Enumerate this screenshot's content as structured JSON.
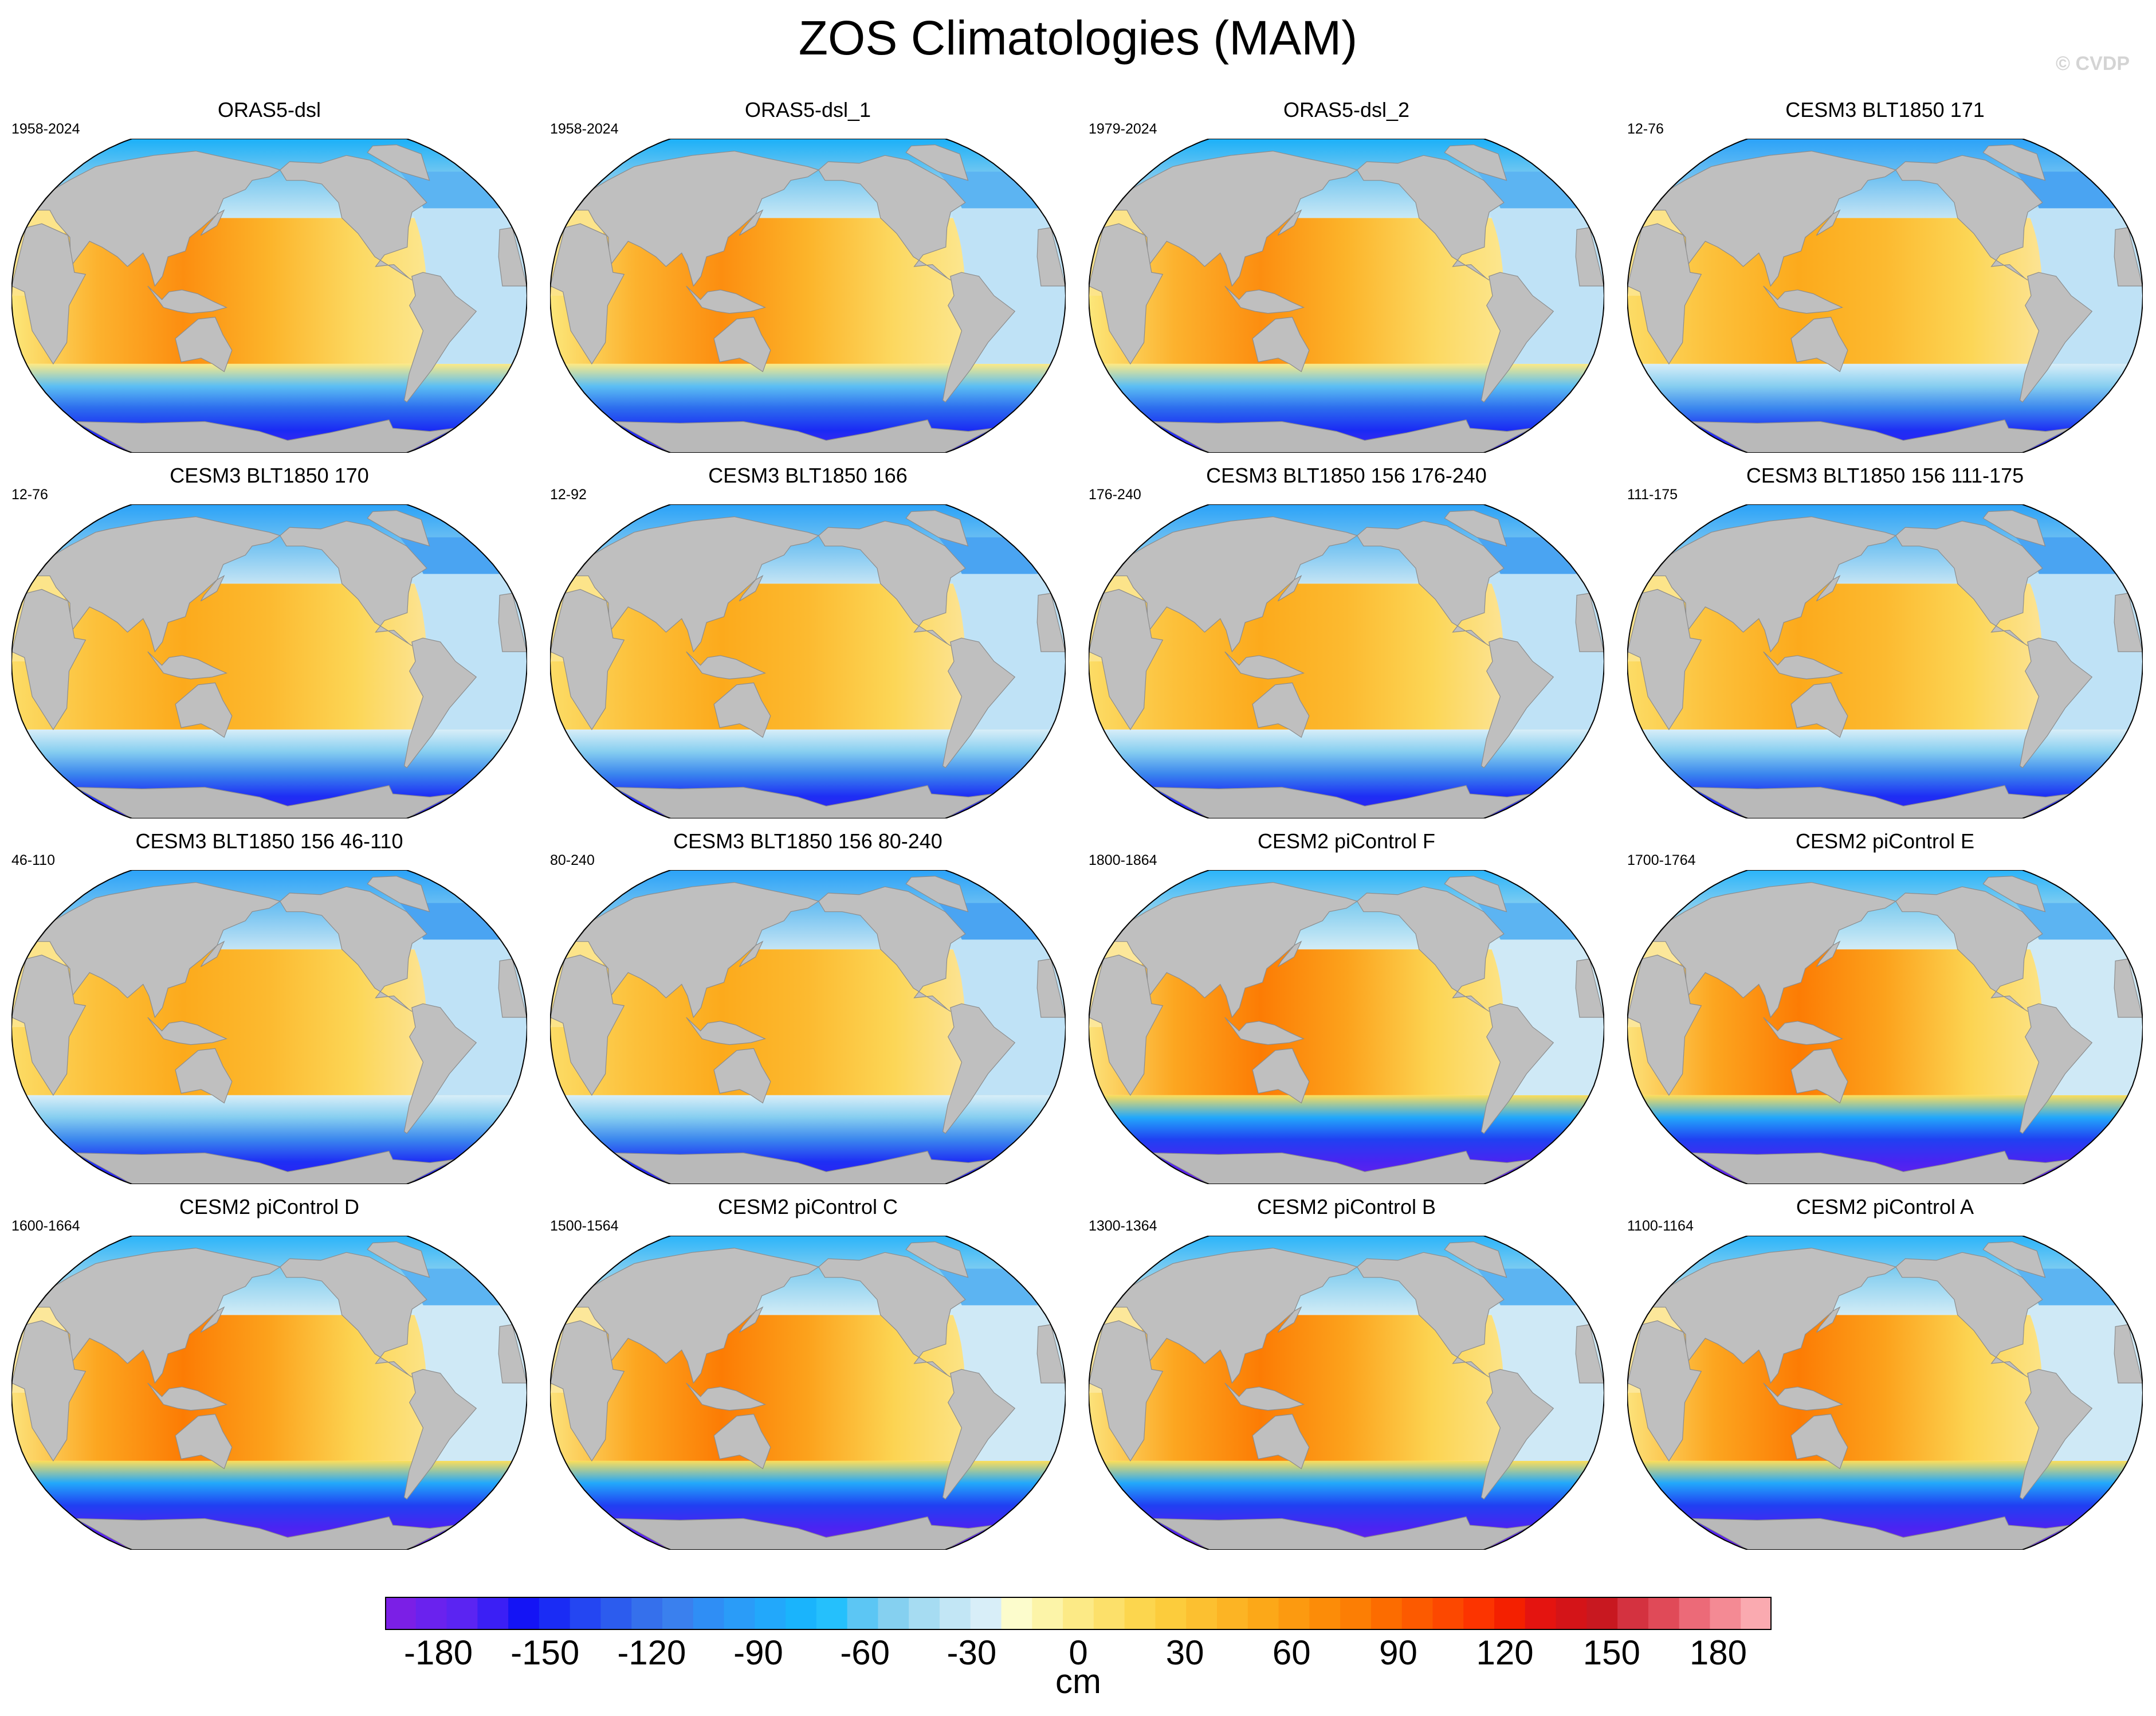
{
  "figure": {
    "title": "ZOS Climatologies (MAM)",
    "watermark": "© CVDP"
  },
  "colorbar": {
    "unit": "cm",
    "min": -195,
    "max": 195,
    "step": 7.5,
    "tick_labels": [
      "-180",
      "-150",
      "-120",
      "-90",
      "-60",
      "-30",
      "0",
      "30",
      "60",
      "90",
      "120",
      "150",
      "180"
    ],
    "tick_values": [
      -180,
      -150,
      -120,
      -90,
      -60,
      -30,
      0,
      30,
      60,
      90,
      120,
      150,
      180
    ],
    "colors": [
      "#7b1fe6",
      "#6a22ee",
      "#5b24f2",
      "#3b1ff5",
      "#1414f5",
      "#1a2cf5",
      "#2446f2",
      "#2c5cee",
      "#3570ec",
      "#3a80ee",
      "#2f8ef5",
      "#2a9cf8",
      "#22a8fb",
      "#1ab4fc",
      "#25c0fc",
      "#5cc6f4",
      "#85d0f0",
      "#a6dcf2",
      "#c2e6f5",
      "#d8eef8",
      "#fcfccc",
      "#fcf4a8",
      "#fcea86",
      "#fce06a",
      "#fcd64e",
      "#fccc3c",
      "#fcc030",
      "#fcb424",
      "#fca818",
      "#fc9a10",
      "#fc8c08",
      "#fc7e04",
      "#fc6c00",
      "#fc5a00",
      "#fc4800",
      "#fc3400",
      "#f42000",
      "#e41410",
      "#d41418",
      "#c81820",
      "#d43240",
      "#e04a58",
      "#ec6a78",
      "#f48a94",
      "#faaab0"
    ]
  },
  "chart_data": {
    "type": "heatmap",
    "title": "ZOS Climatologies (MAM)",
    "layout": "4x4 grid of Robinson-projection global maps, Pacific-centred",
    "colorbar_label": "cm",
    "zlim": [
      -195,
      195
    ],
    "panels": [
      {
        "title": "ORAS5-dsl",
        "period": "1958-2024",
        "pattern": "reanalysis"
      },
      {
        "title": "ORAS5-dsl_1",
        "period": "1958-2024",
        "pattern": "reanalysis"
      },
      {
        "title": "ORAS5-dsl_2",
        "period": "1979-2024",
        "pattern": "reanalysis"
      },
      {
        "title": "CESM3 BLT1850 171",
        "period": "12-76",
        "pattern": "cesm3"
      },
      {
        "title": "CESM3 BLT1850 170",
        "period": "12-76",
        "pattern": "cesm3"
      },
      {
        "title": "CESM3 BLT1850 166",
        "period": "12-92",
        "pattern": "cesm3"
      },
      {
        "title": "CESM3 BLT1850 156 176-240",
        "period": "176-240",
        "pattern": "cesm3"
      },
      {
        "title": "CESM3 BLT1850 156 111-175",
        "period": "111-175",
        "pattern": "cesm3"
      },
      {
        "title": "CESM3 BLT1850 156 46-110",
        "period": "46-110",
        "pattern": "cesm3"
      },
      {
        "title": "CESM3 BLT1850 156 80-240",
        "period": "80-240",
        "pattern": "cesm3"
      },
      {
        "title": "CESM2 piControl F",
        "period": "1800-1864",
        "pattern": "cesm2"
      },
      {
        "title": "CESM2 piControl E",
        "period": "1700-1764",
        "pattern": "cesm2"
      },
      {
        "title": "CESM2 piControl D",
        "period": "1600-1664",
        "pattern": "cesm2"
      },
      {
        "title": "CESM2 piControl C",
        "period": "1500-1564",
        "pattern": "cesm2"
      },
      {
        "title": "CESM2 piControl B",
        "period": "1300-1364",
        "pattern": "cesm2"
      },
      {
        "title": "CESM2 piControl A",
        "period": "1100-1164",
        "pattern": "cesm2"
      }
    ],
    "field_levels_cm": {
      "reanalysis": {
        "west_pacific": 85,
        "tropics": 55,
        "east_pacific": 35,
        "atlantic": -20,
        "north_atlantic": -50,
        "arctic": -65,
        "southern_ocean": -150
      },
      "cesm3": {
        "west_pacific": 70,
        "tropics": 50,
        "east_pacific": 30,
        "atlantic": -30,
        "north_atlantic": -60,
        "arctic": -55,
        "southern_ocean": -140
      },
      "cesm2": {
        "west_pacific": 95,
        "tropics": 60,
        "east_pacific": 40,
        "atlantic": -10,
        "north_atlantic": -45,
        "arctic": -55,
        "southern_ocean": -175
      }
    }
  }
}
